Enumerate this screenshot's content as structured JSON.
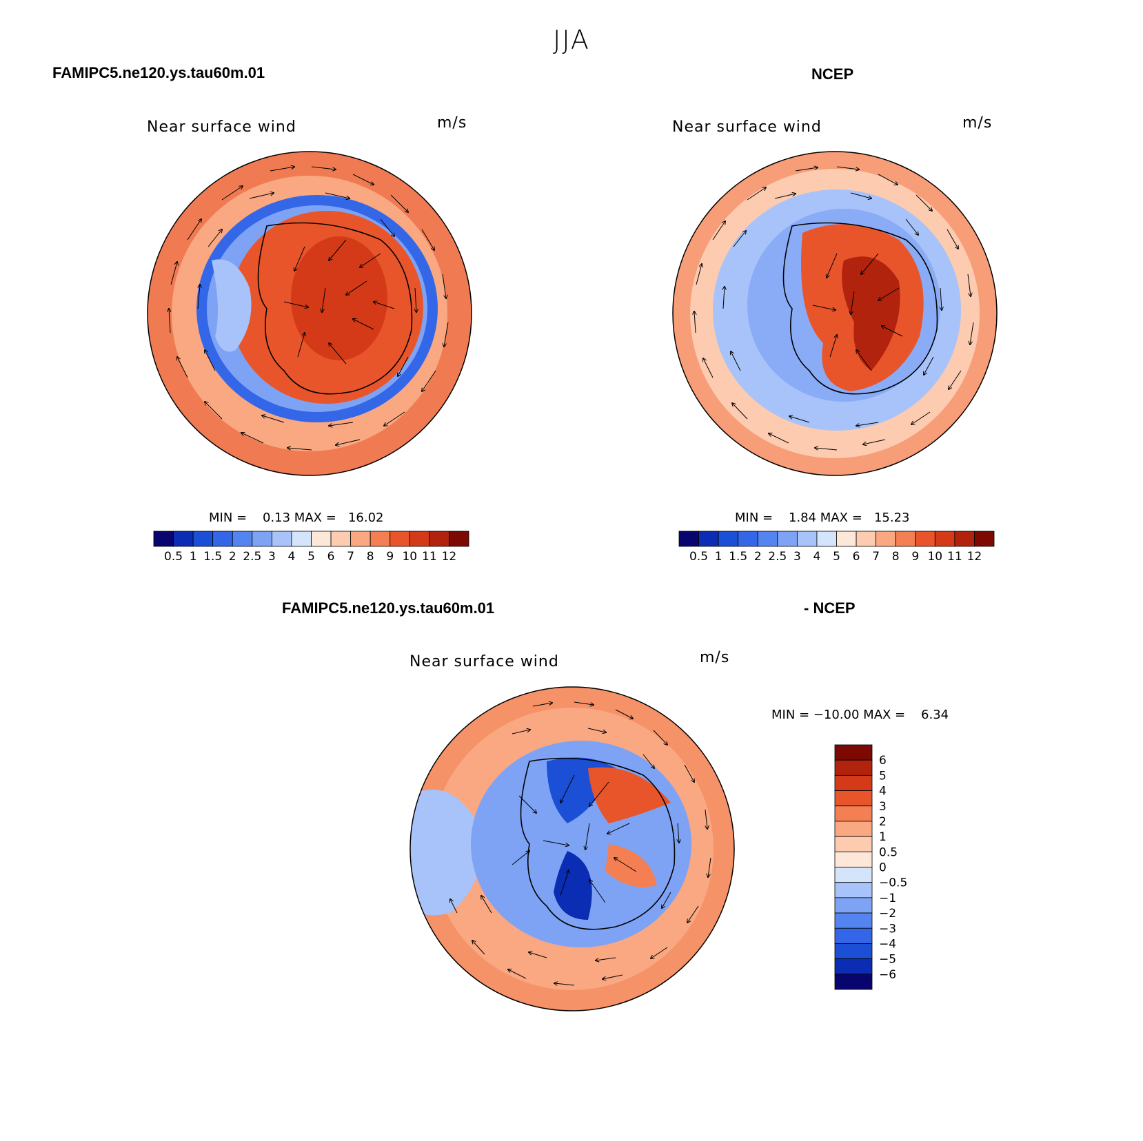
{
  "figure": {
    "season": "JJA",
    "variable": "Near surface wind",
    "units": "m/s"
  },
  "panels": {
    "model": {
      "case": "FAMIPC5.ne120.ys.tau60m.01",
      "subtitle": "Near surface wind",
      "units": "m/s",
      "minmax": "MIN =    0.13 MAX =   16.02"
    },
    "obs": {
      "case": "NCEP",
      "subtitle": "Near surface wind",
      "units": "m/s",
      "minmax": "MIN =    1.84 MAX =   15.23"
    },
    "diff": {
      "case_left": "FAMIPC5.ne120.ys.tau60m.01",
      "case_right": "- NCEP",
      "subtitle": "Near surface wind",
      "units": "m/s",
      "minmax": "MIN = −10.00 MAX =    6.34"
    }
  },
  "chart_data": [
    {
      "type": "heatmap",
      "projection": "south-polar-stereographic",
      "title": "FAMIPC5.ne120.ys.tau60m.01",
      "subtitle": "Near surface wind",
      "units": "m/s",
      "min": 0.13,
      "max": 16.02,
      "colorbar": {
        "orientation": "horizontal",
        "levels": [
          0.5,
          1,
          1.5,
          2,
          2.5,
          3,
          4,
          5,
          6,
          7,
          8,
          9,
          10,
          11,
          12
        ],
        "labels": [
          "0.5",
          "1",
          "1.5",
          "2",
          "2.5",
          "3",
          "4",
          "5",
          "6",
          "7",
          "8",
          "9",
          "10",
          "11",
          "12"
        ],
        "colors": [
          "#08066e",
          "#0a2db4",
          "#1a4fd6",
          "#3467e8",
          "#5484f0",
          "#7ea3f5",
          "#a7c3f9",
          "#d3e4fb",
          "#fde7d8",
          "#fccbb0",
          "#f9a882",
          "#f37f53",
          "#e9552b",
          "#d43a17",
          "#b1230c",
          "#7c0a03"
        ]
      }
    },
    {
      "type": "heatmap",
      "projection": "south-polar-stereographic",
      "title": "NCEP",
      "subtitle": "Near surface wind",
      "units": "m/s",
      "min": 1.84,
      "max": 15.23,
      "colorbar": {
        "orientation": "horizontal",
        "levels": [
          0.5,
          1,
          1.5,
          2,
          2.5,
          3,
          4,
          5,
          6,
          7,
          8,
          9,
          10,
          11,
          12
        ],
        "labels": [
          "0.5",
          "1",
          "1.5",
          "2",
          "2.5",
          "3",
          "4",
          "5",
          "6",
          "7",
          "8",
          "9",
          "10",
          "11",
          "12"
        ],
        "colors": [
          "#08066e",
          "#0a2db4",
          "#1a4fd6",
          "#3467e8",
          "#5484f0",
          "#7ea3f5",
          "#a7c3f9",
          "#d3e4fb",
          "#fde7d8",
          "#fccbb0",
          "#f9a882",
          "#f37f53",
          "#e9552b",
          "#d43a17",
          "#b1230c",
          "#7c0a03"
        ]
      }
    },
    {
      "type": "heatmap",
      "projection": "south-polar-stereographic",
      "title": "FAMIPC5.ne120.ys.tau60m.01 - NCEP",
      "subtitle": "Near surface wind",
      "units": "m/s",
      "min": -10.0,
      "max": 6.34,
      "colorbar": {
        "orientation": "vertical",
        "levels": [
          6,
          5,
          4,
          3,
          2,
          1,
          0.5,
          0,
          -0.5,
          -1,
          -2,
          -3,
          -4,
          -5,
          -6
        ],
        "labels": [
          "6",
          "5",
          "4",
          "3",
          "2",
          "1",
          "0.5",
          "0",
          "−0.5",
          "−1",
          "−2",
          "−3",
          "−4",
          "−5",
          "−6"
        ],
        "colors": [
          "#7c0a03",
          "#b1230c",
          "#d43a17",
          "#e9552b",
          "#f37f53",
          "#f9a882",
          "#fccbb0",
          "#fde7d8",
          "#d3e4fb",
          "#a7c3f9",
          "#7ea3f5",
          "#5484f0",
          "#3467e8",
          "#1a4fd6",
          "#0a2db4",
          "#08066e"
        ]
      }
    }
  ]
}
